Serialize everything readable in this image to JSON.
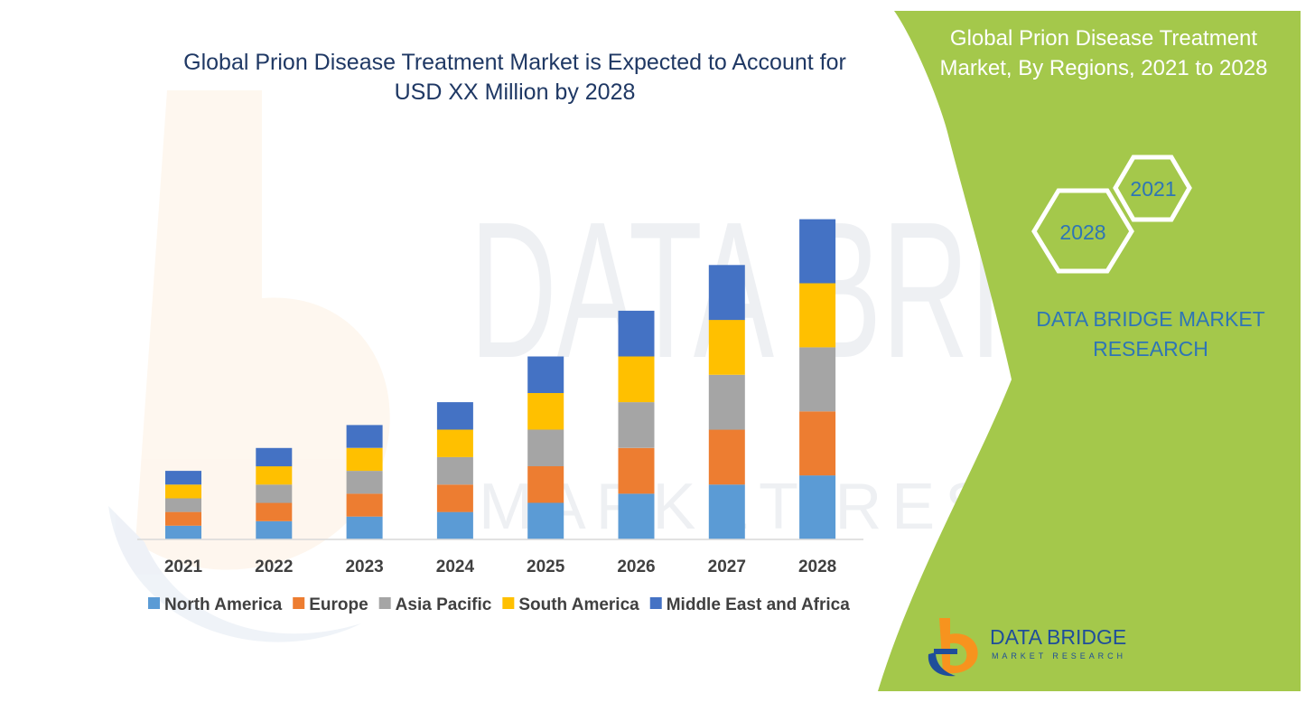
{
  "chart_data": {
    "type": "bar",
    "stacked": true,
    "title": "Global Prion Disease Treatment Market is Expected to Account for USD XX Million by 2028",
    "title_lines": [
      "Global Prion Disease Treatment Market is Expected to Account for",
      "USD XX Million by 2028"
    ],
    "xlabel": "",
    "ylabel": "",
    "ylim": [
      0,
      80
    ],
    "grid": false,
    "legend_position": "bottom",
    "categories": [
      "2021",
      "2022",
      "2023",
      "2024",
      "2025",
      "2026",
      "2027",
      "2028"
    ],
    "series": [
      {
        "name": "North America",
        "color": "#5b9bd5",
        "values": [
          3,
          4,
          5,
          6,
          8,
          10,
          12,
          14
        ]
      },
      {
        "name": "Europe",
        "color": "#ed7d31",
        "values": [
          3,
          4,
          5,
          6,
          8,
          10,
          12,
          14
        ]
      },
      {
        "name": "Asia Pacific",
        "color": "#a5a5a5",
        "values": [
          3,
          4,
          5,
          6,
          8,
          10,
          12,
          14
        ]
      },
      {
        "name": "South America",
        "color": "#ffc000",
        "values": [
          3,
          4,
          5,
          6,
          8,
          10,
          12,
          14
        ]
      },
      {
        "name": "Middle East and Africa",
        "color": "#4472c4",
        "values": [
          3,
          4,
          5,
          6,
          8,
          10,
          12,
          14
        ]
      }
    ]
  },
  "side_panel": {
    "heading_lines": [
      "Global Prion Disease Treatment",
      "Market, By Regions, 2021 to 2028"
    ],
    "hex_year_back": "2021",
    "hex_year_front": "2028",
    "brand_lines": [
      "DATA BRIDGE MARKET",
      "RESEARCH"
    ],
    "panel_color": "#a4c84b",
    "brand_color": "#2e75b6"
  },
  "logo": {
    "name": "DATA BRIDGE",
    "tagline": "MARKET RESEARCH",
    "mark_orange": "#f7931e",
    "mark_blue": "#1f4e9a"
  },
  "watermark": {
    "text": "DATA BRIDGE",
    "subtext": "MARKET RESEARCH"
  }
}
